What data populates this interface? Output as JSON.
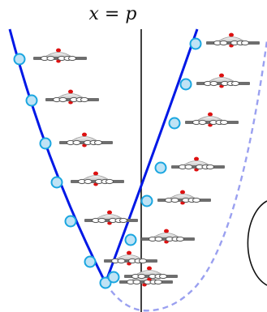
{
  "title": "x = p",
  "colors": {
    "curve_solid": "#0018e6",
    "curve_dashed": "#9aa0f0",
    "axis": "#111111",
    "node_fill": "#bfe3f5",
    "node_stroke": "#1aa6e0",
    "rod": "#6e6e6e",
    "disk": "#d8d8d8",
    "hole_fill": "#ffffff",
    "red_marker": "#dd1111"
  },
  "icons": {
    "molecule": "platform-with-rings-icon",
    "node": "circle-node-icon"
  },
  "left_branch_molecules": 7,
  "right_branch_molecules": 9
}
